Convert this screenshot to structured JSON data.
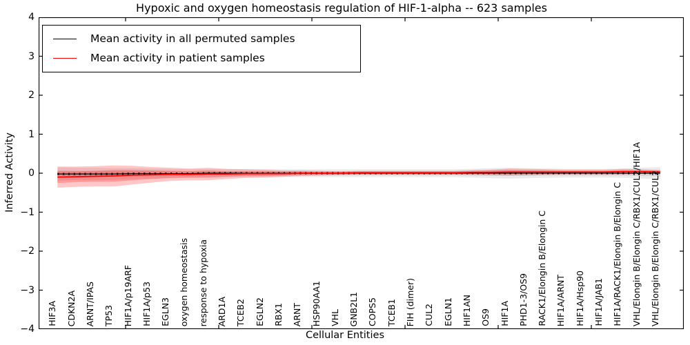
{
  "chart_data": {
    "type": "line",
    "title": "Hypoxic and oxygen homeostasis regulation of HIF-1-alpha -- 623 samples",
    "xlabel": "Cellular Entities",
    "ylabel": "Inferred Activity",
    "ylim": [
      -4,
      4
    ],
    "ytick_labels": [
      "−4",
      "−3",
      "−2",
      "−1",
      "0",
      "1",
      "2",
      "3",
      "4"
    ],
    "grid": false,
    "legend_position": "upper left",
    "categories": [
      "HIF3A",
      "CDKN2A",
      "ARNT/IPAS",
      "TP53",
      "HIF1A/p19ARF",
      "HIF1A/p53",
      "EGLN3",
      "oxygen homeostasis",
      "response to hypoxia",
      "ARD1A",
      "TCEB2",
      "EGLN2",
      "RBX1",
      "ARNT",
      "HSP90AA1",
      "VHL",
      "GNB2L1",
      "COPS5",
      "TCEB1",
      "FIH (dimer)",
      "CUL2",
      "EGLN1",
      "HIF1AN",
      "OS9",
      "HIF1A",
      "PHD1-3/OS9",
      "RACK1/Elongin B/Elongin C",
      "HIF1A/ARNT",
      "HIF1A/Hsp90",
      "HIF1A/JAB1",
      "HIF1A/RACK1/Elongin B/Elongin C",
      "VHL/Elongin B/Elongin C/RBX1/CUL2/HIF1A",
      "VHL/Elongin B/Elongin C/RBX1/CUL2"
    ],
    "series": [
      {
        "name": "Mean activity in all permuted samples",
        "color": "#000000",
        "band_fill": "rgba(0,0,0,0.08)",
        "mean": [
          -0.02,
          -0.02,
          -0.02,
          -0.02,
          -0.01,
          -0.01,
          -0.01,
          -0.01,
          0,
          0,
          0,
          0,
          0,
          0,
          0,
          0,
          0,
          0,
          0,
          0,
          0,
          0,
          0,
          0,
          0,
          0,
          0,
          0,
          0,
          0,
          0,
          0,
          0
        ],
        "band_outer": [
          0.17,
          0.16,
          0.16,
          0.15,
          0.14,
          0.13,
          0.12,
          0.11,
          0.11,
          0.1,
          0.1,
          0.1,
          0.1,
          0.1,
          0.1,
          0.1,
          0.1,
          0.1,
          0.1,
          0.1,
          0.1,
          0.1,
          0.11,
          0.13,
          0.14,
          0.13,
          0.12,
          0.11,
          0.11,
          0.11,
          0.12,
          0.14,
          0.16
        ],
        "band_inner": [
          0.09,
          0.08,
          0.08,
          0.08,
          0.07,
          0.07,
          0.06,
          0.06,
          0.05,
          0.05,
          0.05,
          0.05,
          0.05,
          0.05,
          0.05,
          0.05,
          0.05,
          0.05,
          0.05,
          0.05,
          0.05,
          0.05,
          0.06,
          0.07,
          0.07,
          0.07,
          0.06,
          0.06,
          0.06,
          0.06,
          0.06,
          0.07,
          0.08
        ]
      },
      {
        "name": "Mean activity in patient samples",
        "color": "#ff0000",
        "band_fill": "rgba(255,0,0,0.22)",
        "mean": [
          -0.1,
          -0.09,
          -0.08,
          -0.07,
          -0.05,
          -0.04,
          -0.03,
          -0.03,
          -0.02,
          -0.02,
          -0.01,
          -0.01,
          -0.01,
          0,
          0,
          0,
          0.01,
          0.01,
          0.01,
          0.01,
          0.01,
          0.01,
          0.02,
          0.02,
          0.03,
          0.03,
          0.03,
          0.03,
          0.03,
          0.03,
          0.04,
          0.04,
          0.03
        ],
        "band_outer": [
          0.27,
          0.26,
          0.26,
          0.27,
          0.24,
          0.2,
          0.17,
          0.15,
          0.16,
          0.13,
          0.11,
          0.1,
          0.08,
          0.07,
          0.06,
          0.05,
          0.05,
          0.05,
          0.05,
          0.05,
          0.05,
          0.05,
          0.06,
          0.07,
          0.09,
          0.08,
          0.07,
          0.06,
          0.06,
          0.06,
          0.07,
          0.06,
          0.05
        ],
        "band_inner": [
          0.15,
          0.14,
          0.14,
          0.15,
          0.13,
          0.11,
          0.09,
          0.08,
          0.09,
          0.07,
          0.06,
          0.06,
          0.05,
          0.04,
          0.03,
          0.03,
          0.03,
          0.03,
          0.03,
          0.03,
          0.03,
          0.03,
          0.03,
          0.04,
          0.05,
          0.04,
          0.04,
          0.03,
          0.03,
          0.03,
          0.04,
          0.03,
          0.03
        ]
      }
    ],
    "legend": [
      {
        "label": "Mean activity in all permuted samples",
        "color": "#000000"
      },
      {
        "label": "Mean activity in patient samples",
        "color": "#ff0000"
      }
    ]
  }
}
